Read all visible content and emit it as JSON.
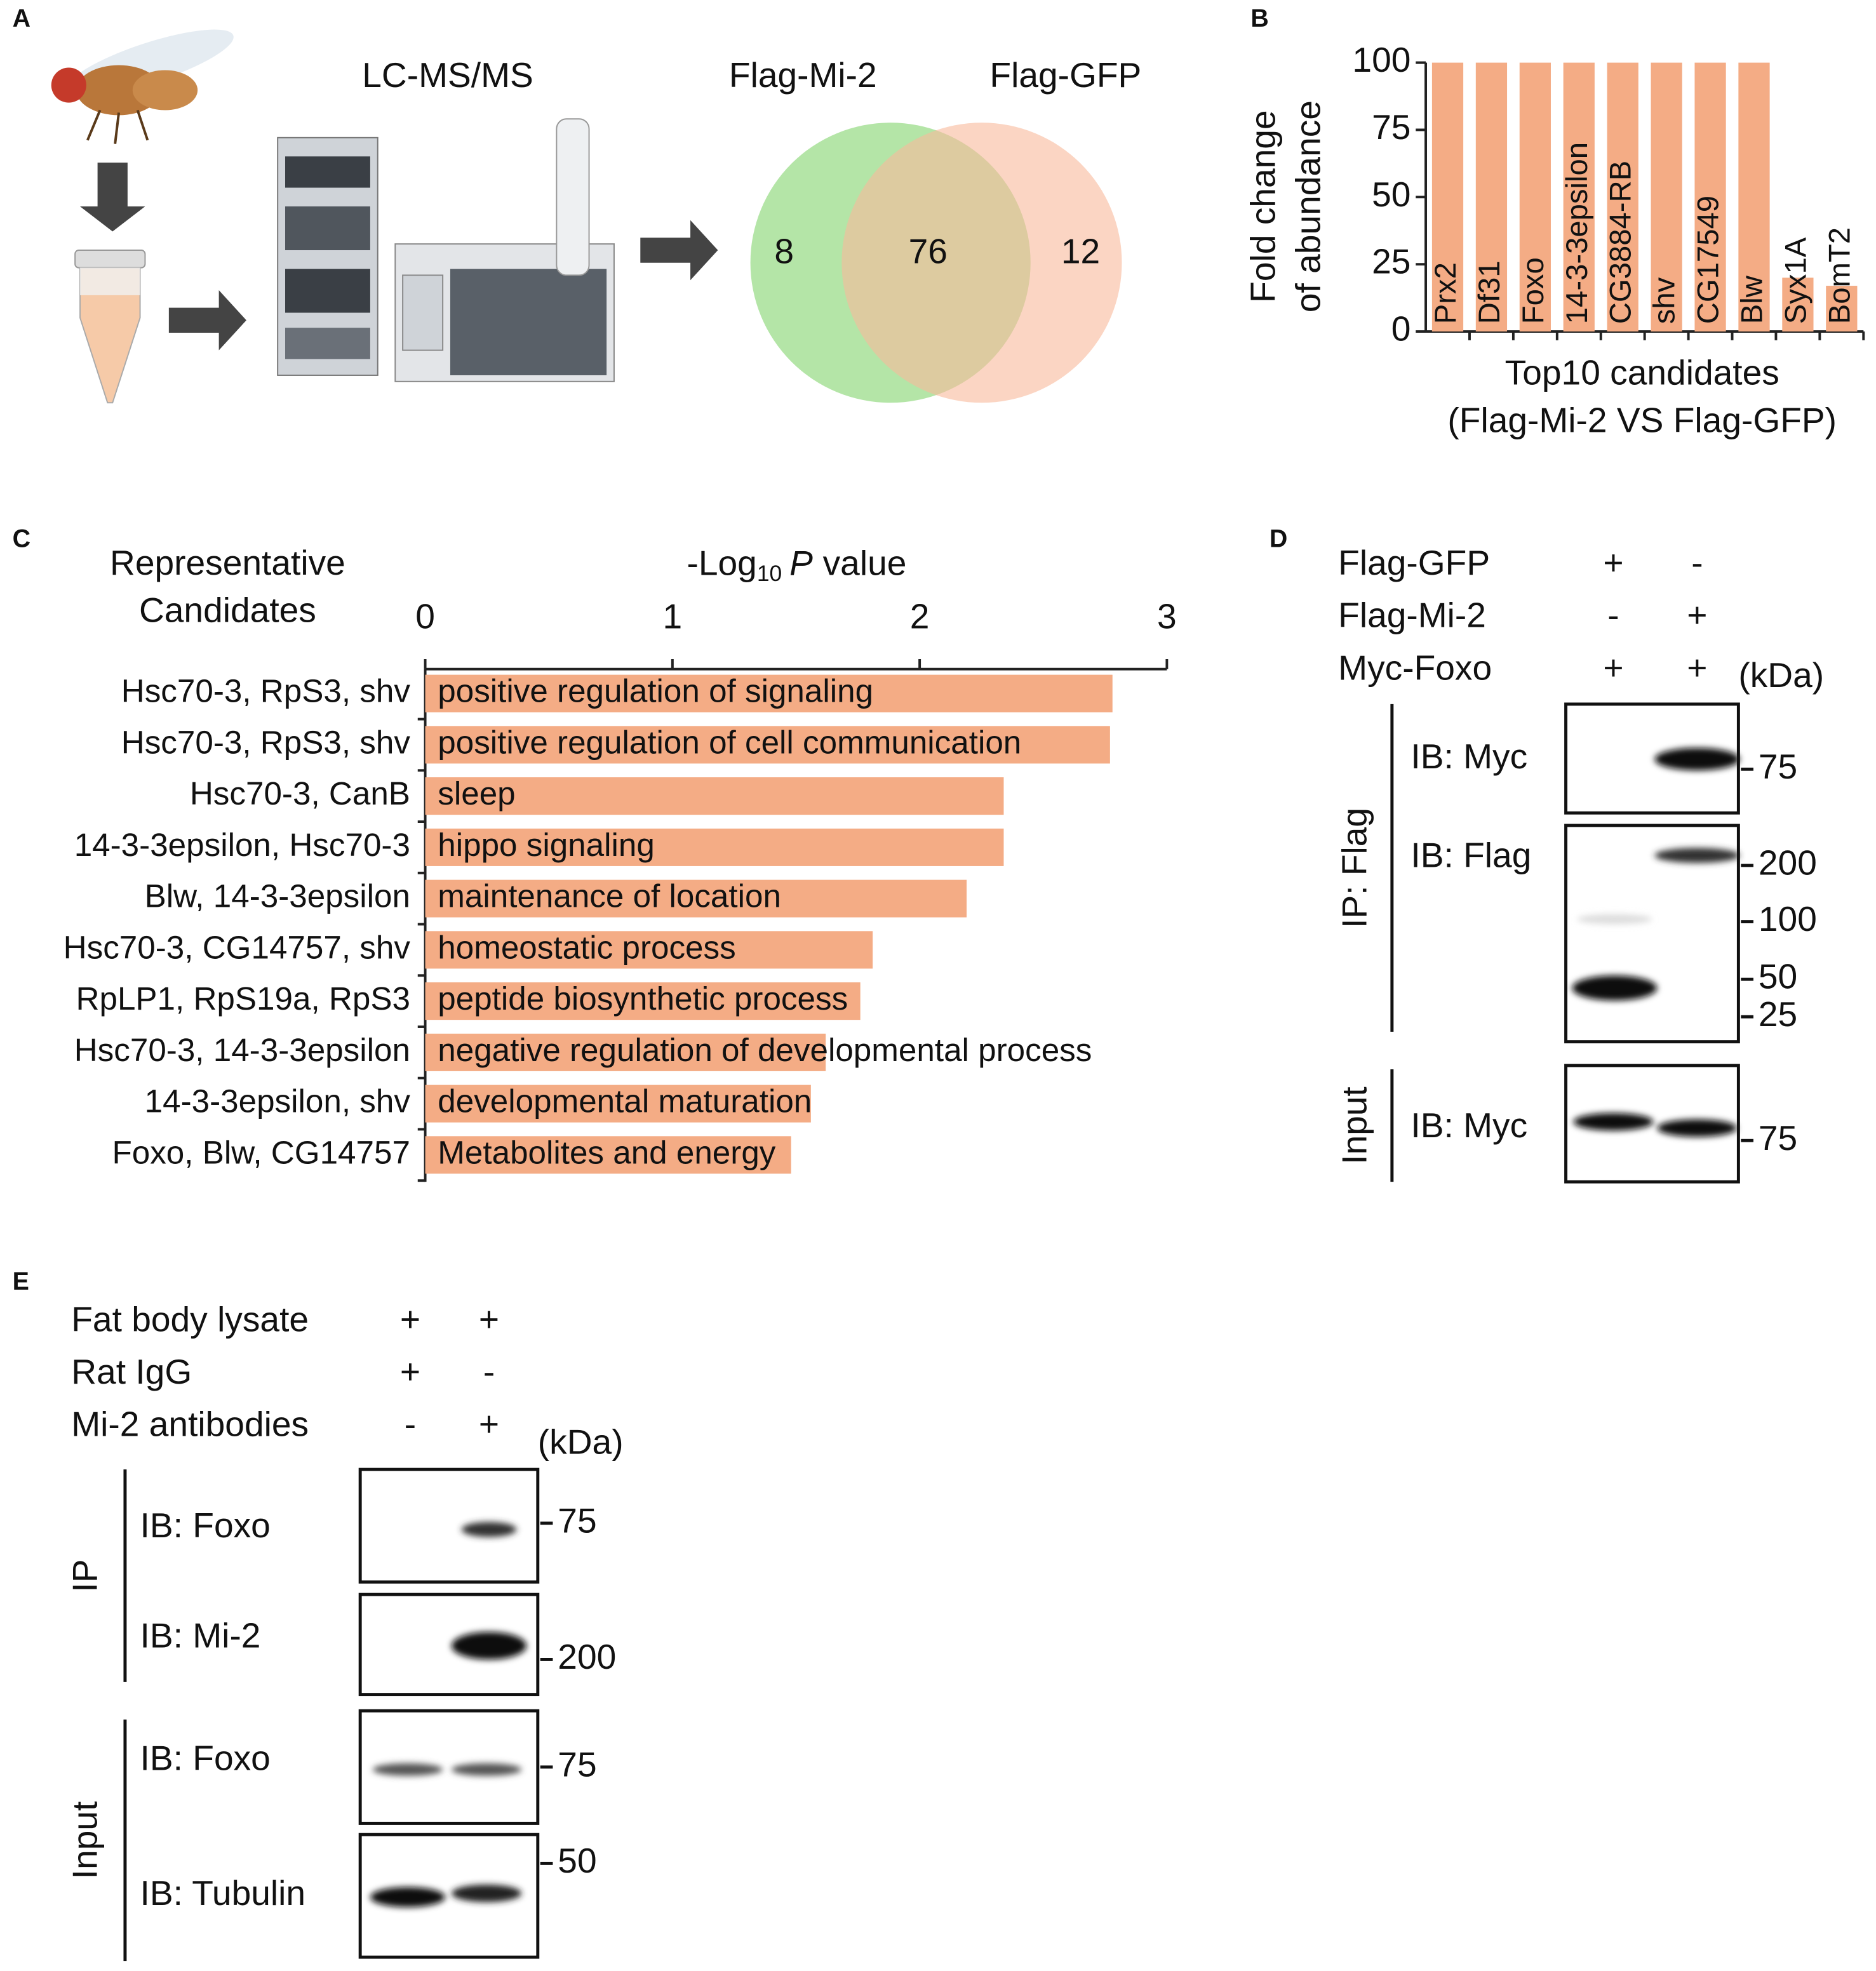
{
  "panel_labels": [
    "A",
    "B",
    "C",
    "D",
    "E"
  ],
  "panel_a": {
    "title": "LC-MS/MS",
    "venn": {
      "sets": [
        "Flag-Mi-2",
        "Flag-GFP"
      ],
      "only_left": 8,
      "both": 76,
      "only_right": 12
    }
  },
  "chart_data": [
    {
      "type": "bar",
      "ylabel": [
        "Fold change",
        "of abundance"
      ],
      "xlabel": [
        "Top10 candidates",
        "(Flag-Mi-2 VS Flag-GFP)"
      ],
      "categories": [
        "Prx2",
        "Df31",
        "Foxo",
        "14-3-3epsilon",
        "CG3884-RB",
        "shv",
        "CG17549",
        "Blw",
        "Syx1A",
        "BomT2"
      ],
      "values": [
        100,
        100,
        100,
        100,
        100,
        100,
        100,
        100,
        20,
        17
      ],
      "color": "#f4ac85",
      "ylim": [
        0,
        100
      ],
      "yticks": [
        0,
        25,
        50,
        75,
        100
      ],
      "grid": false
    },
    {
      "type": "barh",
      "category_header": [
        "Representative",
        "Candidates"
      ],
      "xlabel": {
        "prefix": "-Log",
        "subscript": "10",
        "italic": "P",
        "suffix": "value"
      },
      "categories": [
        "Hsc70-3, RpS3, shv",
        "Hsc70-3, RpS3, shv",
        "Hsc70-3, CanB",
        "14-3-3epsilon, Hsc70-3",
        "Blw, 14-3-3epsilon",
        "Hsc70-3, CG14757, shv",
        "RpLP1, RpS19a, RpS3",
        "Hsc70-3, 14-3-3epsilon",
        "14-3-3epsilon, shv",
        "Foxo, Blw, CG14757"
      ],
      "terms": [
        "positive regulation of signaling",
        "positive regulation of cell communication",
        "sleep",
        "hippo signaling",
        "maintenance of location",
        "homeostatic process",
        "peptide biosynthetic process",
        "negative regulation of developmental process",
        "developmental maturation",
        "Metabolites and energy"
      ],
      "values": [
        2.78,
        2.77,
        2.34,
        2.34,
        2.19,
        1.81,
        1.76,
        1.62,
        1.56,
        1.48
      ],
      "color": "#f4ac85",
      "xlim": [
        0,
        3
      ],
      "xticks": [
        0,
        1,
        2,
        3
      ],
      "grid": false
    }
  ],
  "panel_d": {
    "conditions": [
      {
        "label": "Flag-GFP",
        "lanes": [
          "+",
          "-"
        ]
      },
      {
        "label": "Flag-Mi-2",
        "lanes": [
          "-",
          "+"
        ]
      },
      {
        "label": "Myc-Foxo",
        "lanes": [
          "+",
          "+"
        ]
      }
    ],
    "unit": "(kDa)",
    "groups": [
      "IP: Flag",
      "Input"
    ],
    "blots": [
      {
        "label": "IB: Myc",
        "markers": [
          75
        ]
      },
      {
        "label": "IB: Flag",
        "markers": [
          200,
          100,
          50,
          25
        ]
      },
      {
        "label": "IB: Myc",
        "markers": [
          75
        ]
      }
    ]
  },
  "panel_e": {
    "conditions": [
      {
        "label": "Fat body lysate",
        "lanes": [
          "+",
          "+"
        ]
      },
      {
        "label": "Rat IgG",
        "lanes": [
          "+",
          "-"
        ]
      },
      {
        "label": "Mi-2 antibodies",
        "lanes": [
          "-",
          "+"
        ]
      }
    ],
    "unit": "(kDa)",
    "groups": [
      "IP",
      "Input"
    ],
    "blots": [
      {
        "label": "IB: Foxo",
        "markers": [
          75
        ]
      },
      {
        "label": "IB: Mi-2",
        "markers": [
          200
        ]
      },
      {
        "label": "IB: Foxo",
        "markers": [
          75
        ]
      },
      {
        "label": "IB: Tubulin",
        "markers": [
          50
        ]
      }
    ]
  }
}
